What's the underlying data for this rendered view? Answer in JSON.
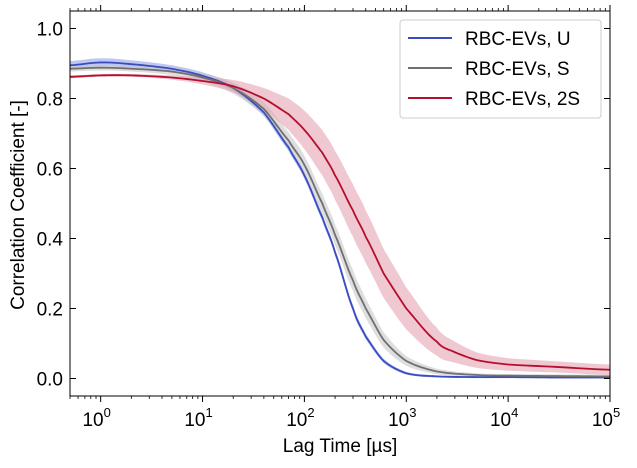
{
  "chart_data": {
    "type": "line",
    "xlabel": "Lag Time [µs]",
    "ylabel": "Correlation Coefficient [-]",
    "xscale": "log",
    "xlim": [
      0.5,
      100000
    ],
    "ylim": [
      -0.05,
      1.05
    ],
    "x_ticks": [
      {
        "value": 1,
        "base": "10",
        "exp": "0"
      },
      {
        "value": 10,
        "base": "10",
        "exp": "1"
      },
      {
        "value": 100,
        "base": "10",
        "exp": "2"
      },
      {
        "value": 1000,
        "base": "10",
        "exp": "3"
      },
      {
        "value": 10000,
        "base": "10",
        "exp": "4"
      },
      {
        "value": 100000,
        "base": "10",
        "exp": "5"
      }
    ],
    "y_ticks": [
      {
        "value": 0.0,
        "label": "0.0"
      },
      {
        "value": 0.2,
        "label": "0.2"
      },
      {
        "value": 0.4,
        "label": "0.4"
      },
      {
        "value": 0.6,
        "label": "0.6"
      },
      {
        "value": 0.8,
        "label": "0.8"
      },
      {
        "value": 1.0,
        "label": "1.0"
      }
    ],
    "grid": false,
    "legend_position": "top-right",
    "series": [
      {
        "name": "RBC-EVs, U",
        "color": "#3a4cc0",
        "band_color": "#7b8fe6",
        "x": [
          0.5,
          1,
          2,
          5,
          10,
          20,
          40,
          70,
          100,
          150,
          200,
          300,
          400,
          600,
          1000,
          2000,
          5000,
          10000,
          30000,
          100000
        ],
        "y": [
          0.895,
          0.903,
          0.898,
          0.885,
          0.865,
          0.83,
          0.76,
          0.66,
          0.58,
          0.46,
          0.36,
          0.2,
          0.12,
          0.05,
          0.015,
          0.006,
          0.004,
          0.004,
          0.003,
          0.003
        ],
        "band": [
          0.012,
          0.012,
          0.011,
          0.01,
          0.01,
          0.01,
          0.01,
          0.01,
          0.01,
          0.01,
          0.01,
          0.01,
          0.008,
          0.006,
          0.004,
          0.003,
          0.003,
          0.003,
          0.003,
          0.003
        ]
      },
      {
        "name": "RBC-EVs, S",
        "color": "#707070",
        "band_color": "#c8c8c8",
        "x": [
          0.5,
          1,
          2,
          5,
          10,
          20,
          40,
          70,
          100,
          150,
          200,
          300,
          400,
          600,
          1000,
          2000,
          5000,
          10000,
          30000,
          100000
        ],
        "y": [
          0.885,
          0.888,
          0.885,
          0.877,
          0.86,
          0.83,
          0.77,
          0.68,
          0.61,
          0.5,
          0.41,
          0.28,
          0.2,
          0.11,
          0.05,
          0.02,
          0.01,
          0.008,
          0.007,
          0.006
        ],
        "band": [
          0.008,
          0.008,
          0.008,
          0.01,
          0.012,
          0.016,
          0.02,
          0.024,
          0.026,
          0.028,
          0.03,
          0.03,
          0.028,
          0.022,
          0.014,
          0.008,
          0.005,
          0.005,
          0.005,
          0.005
        ]
      },
      {
        "name": "RBC-EVs, 2S",
        "color": "#b40f2f",
        "band_color": "#e6a4b2",
        "x": [
          0.5,
          1,
          2,
          5,
          10,
          20,
          40,
          70,
          100,
          150,
          200,
          300,
          400,
          600,
          1000,
          2000,
          3000,
          5000,
          10000,
          30000,
          100000
        ],
        "y": [
          0.862,
          0.866,
          0.866,
          0.86,
          0.85,
          0.835,
          0.8,
          0.755,
          0.71,
          0.645,
          0.58,
          0.48,
          0.405,
          0.3,
          0.2,
          0.105,
          0.075,
          0.052,
          0.04,
          0.033,
          0.025
        ],
        "band": [
          0.004,
          0.004,
          0.004,
          0.006,
          0.01,
          0.018,
          0.03,
          0.045,
          0.055,
          0.065,
          0.07,
          0.075,
          0.075,
          0.07,
          0.06,
          0.04,
          0.03,
          0.022,
          0.018,
          0.016,
          0.015
        ]
      }
    ]
  }
}
